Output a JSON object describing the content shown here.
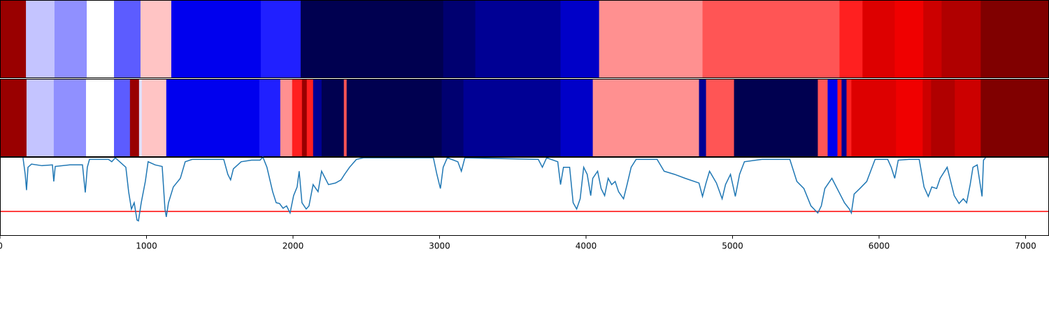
{
  "chart_data": [
    {
      "type": "segments",
      "xlim": [
        0,
        7160
      ],
      "bounds": [
        0,
        177,
        372,
        592,
        778,
        959,
        1169,
        1780,
        2052,
        3025,
        3244,
        3826,
        4089,
        4795,
        5730,
        5887,
        6107,
        6302,
        6427,
        6694,
        7160
      ],
      "colors": [
        "#990000",
        "#c4c4ff",
        "#9090ff",
        "#ffffff",
        "#5c5cff",
        "#ffc4c4",
        "#0000ee",
        "#2020ff",
        "#000050",
        "#000070",
        "#000094",
        "#0000c8",
        "#ff9090",
        "#ff5555",
        "#ff2020",
        "#dd0000",
        "#f00000",
        "#cc0000",
        "#b00000",
        "#800000"
      ]
    },
    {
      "type": "segments",
      "xlim": [
        0,
        7160
      ],
      "bounds": [
        0,
        181,
        367,
        587,
        778,
        887,
        949,
        968,
        1135,
        1770,
        1913,
        1994,
        2061,
        2094,
        2137,
        2195,
        2347,
        2366,
        3015,
        3163,
        3826,
        4046,
        4771,
        4819,
        5010,
        5582,
        5649,
        5716,
        5744,
        5778,
        5811,
        6116,
        6298,
        6355,
        6517,
        6694,
        7160
      ],
      "colors": [
        "#990000",
        "#c4c4ff",
        "#9090ff",
        "#ffffff",
        "#5c5cff",
        "#990000",
        "#e0e0ff",
        "#ffc4c4",
        "#0000ee",
        "#2020ff",
        "#ff9090",
        "#ff2020",
        "#990000",
        "#ff2020",
        "#000094",
        "#000050",
        "#ff5555",
        "#000050",
        "#000070",
        "#000094",
        "#0000c8",
        "#ff9090",
        "#000094",
        "#ff5555",
        "#000050",
        "#ff5555",
        "#0000ee",
        "#ff2020",
        "#000094",
        "#ff2020",
        "#dd0000",
        "#f00000",
        "#cc0000",
        "#b00000",
        "#cc0000",
        "#800000"
      ]
    },
    {
      "type": "line",
      "xlim": [
        0,
        7160
      ],
      "ylim": [
        0,
        1
      ],
      "xticks": [
        0,
        1000,
        2000,
        3000,
        4000,
        5000,
        6000,
        7000
      ],
      "threshold": {
        "value": 0.31,
        "color": "#ff0000"
      },
      "x": [
        157,
        172,
        181,
        191,
        215,
        286,
        358,
        367,
        377,
        477,
        563,
        582,
        596,
        611,
        740,
        763,
        787,
        859,
        878,
        897,
        916,
        935,
        945,
        964,
        992,
        1011,
        1059,
        1107,
        1126,
        1135,
        1150,
        1183,
        1231,
        1264,
        1312,
        1527,
        1555,
        1574,
        1593,
        1646,
        1717,
        1775,
        1794,
        1822,
        1861,
        1885,
        1908,
        1932,
        1956,
        1980,
        2004,
        2028,
        2042,
        2061,
        2090,
        2109,
        2137,
        2171,
        2195,
        2242,
        2290,
        2328,
        2352,
        2386,
        2433,
        2481,
        2958,
        2982,
        3006,
        3025,
        3053,
        3125,
        3149,
        3173,
        3674,
        3702,
        3731,
        3807,
        3826,
        3846,
        3888,
        3912,
        3936,
        3960,
        3984,
        4008,
        4032,
        4046,
        4079,
        4103,
        4127,
        4151,
        4175,
        4199,
        4222,
        4256,
        4280,
        4308,
        4342,
        4485,
        4533,
        4604,
        4676,
        4771,
        4795,
        4819,
        4843,
        4890,
        4929,
        4952,
        4986,
        5019,
        5048,
        5081,
        5201,
        5391,
        5439,
        5487,
        5535,
        5582,
        5606,
        5630,
        5678,
        5725,
        5764,
        5797,
        5811,
        5830,
        5869,
        5916,
        5973,
        6059,
        6083,
        6107,
        6131,
        6203,
        6274,
        6307,
        6336,
        6360,
        6393,
        6417,
        6465,
        6513,
        6546,
        6575,
        6598,
        6622,
        6641,
        6670,
        6703,
        6713,
        6727
      ],
      "series": [
        {
          "color": "#1f77b4",
          "values": [
            0.99,
            0.78,
            0.58,
            0.87,
            0.91,
            0.89,
            0.9,
            0.69,
            0.88,
            0.9,
            0.9,
            0.55,
            0.87,
            0.97,
            0.97,
            0.94,
            0.99,
            0.87,
            0.56,
            0.34,
            0.42,
            0.2,
            0.19,
            0.42,
            0.69,
            0.94,
            0.9,
            0.88,
            0.34,
            0.24,
            0.42,
            0.62,
            0.73,
            0.94,
            0.97,
            0.97,
            0.78,
            0.71,
            0.85,
            0.94,
            0.96,
            0.96,
            1.0,
            0.87,
            0.56,
            0.42,
            0.41,
            0.35,
            0.38,
            0.29,
            0.51,
            0.62,
            0.82,
            0.42,
            0.34,
            0.38,
            0.65,
            0.56,
            0.82,
            0.65,
            0.67,
            0.71,
            0.78,
            0.87,
            0.97,
            0.99,
            0.99,
            0.78,
            0.6,
            0.87,
            0.99,
            0.94,
            0.82,
            0.99,
            0.97,
            0.87,
            0.99,
            0.94,
            0.65,
            0.87,
            0.87,
            0.42,
            0.34,
            0.47,
            0.87,
            0.78,
            0.51,
            0.73,
            0.82,
            0.6,
            0.51,
            0.73,
            0.65,
            0.69,
            0.56,
            0.47,
            0.65,
            0.87,
            0.97,
            0.97,
            0.82,
            0.78,
            0.73,
            0.67,
            0.5,
            0.67,
            0.82,
            0.67,
            0.47,
            0.65,
            0.78,
            0.5,
            0.78,
            0.94,
            0.97,
            0.97,
            0.69,
            0.6,
            0.38,
            0.29,
            0.38,
            0.6,
            0.73,
            0.56,
            0.42,
            0.34,
            0.29,
            0.53,
            0.6,
            0.69,
            0.97,
            0.97,
            0.87,
            0.73,
            0.96,
            0.97,
            0.97,
            0.62,
            0.5,
            0.62,
            0.6,
            0.73,
            0.87,
            0.51,
            0.41,
            0.47,
            0.42,
            0.65,
            0.87,
            0.9,
            0.5,
            0.96,
            0.99
          ]
        }
      ]
    }
  ]
}
